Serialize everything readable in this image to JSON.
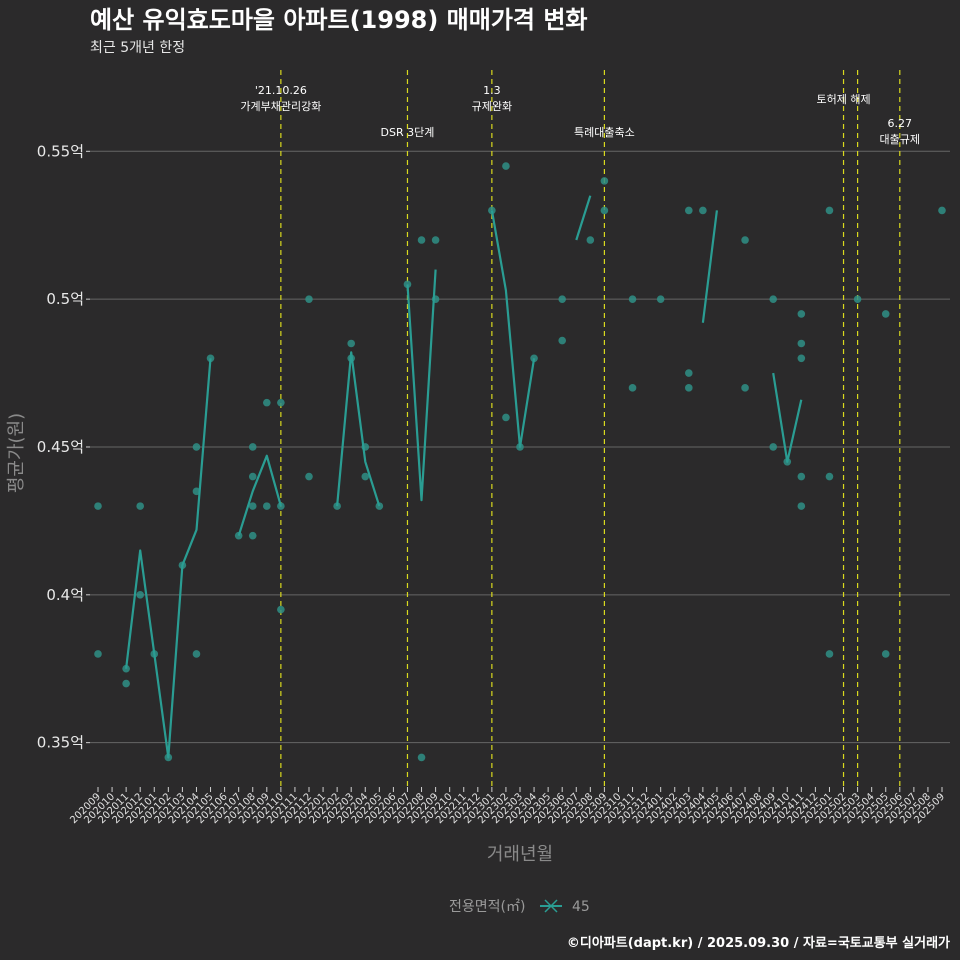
{
  "chart_data": {
    "type": "line",
    "title": "예산 유익효도마을 아파트(1998) 매매가격 변화",
    "subtitle": "최근 5개년 한정",
    "xlabel": "거래년월",
    "ylabel": "평균가(원)",
    "caption": "©디아파트(dapt.kr) / 2025.09.30 / 자료=국토교통부 실거래가",
    "legend": {
      "title": "전용면적(㎡)",
      "entries": [
        "45"
      ],
      "position": "bottom"
    },
    "ylim": [
      0.335,
      0.5775
    ],
    "ytick_values": [
      0.35,
      0.4,
      0.45,
      0.5,
      0.55
    ],
    "ytick_labels": [
      "0.35억",
      "0.4억",
      "0.45억",
      "0.5억",
      "0.55억"
    ],
    "categories": [
      "202009",
      "202010",
      "202011",
      "202012",
      "202101",
      "202102",
      "202103",
      "202104",
      "202105",
      "202106",
      "202107",
      "202108",
      "202109",
      "202110",
      "202111",
      "202112",
      "202201",
      "202202",
      "202203",
      "202204",
      "202205",
      "202206",
      "202207",
      "202208",
      "202209",
      "202210",
      "202211",
      "202212",
      "202301",
      "202302",
      "202303",
      "202304",
      "202305",
      "202306",
      "202307",
      "202308",
      "202309",
      "202310",
      "202311",
      "202312",
      "202401",
      "202402",
      "202403",
      "202404",
      "202405",
      "202406",
      "202407",
      "202408",
      "202409",
      "202410",
      "202411",
      "202412",
      "202501",
      "202502",
      "202503",
      "202504",
      "202505",
      "202506",
      "202507",
      "202508",
      "202509"
    ],
    "colors": {
      "series": "#2a9d93",
      "points": "#2f8f86",
      "vline": "#d9d91e",
      "grid": "#666666"
    },
    "series": [
      {
        "name": "45",
        "line_segments": [
          [
            [
              2,
              0.375
            ],
            [
              3,
              0.415
            ],
            [
              4,
              0.38
            ],
            [
              5,
              0.345
            ],
            [
              6,
              0.41
            ],
            [
              7,
              0.422
            ],
            [
              8,
              0.48
            ]
          ],
          [
            [
              10,
              0.42
            ],
            [
              11,
              0.435
            ],
            [
              12,
              0.447
            ],
            [
              13,
              0.43
            ]
          ],
          [
            [
              17,
              0.43
            ],
            [
              18,
              0.482
            ],
            [
              19,
              0.445
            ],
            [
              20,
              0.43
            ]
          ],
          [
            [
              22,
              0.505
            ],
            [
              23,
              0.432
            ],
            [
              24,
              0.51
            ]
          ],
          [
            [
              28,
              0.53
            ],
            [
              29,
              0.503
            ],
            [
              30,
              0.45
            ],
            [
              31,
              0.48
            ]
          ],
          [
            [
              34,
              0.52
            ],
            [
              35,
              0.535
            ]
          ],
          [
            [
              43,
              0.492
            ],
            [
              44,
              0.53
            ]
          ],
          [
            [
              48,
              0.475
            ],
            [
              49,
              0.445
            ],
            [
              50,
              0.466
            ]
          ]
        ],
        "points": [
          [
            0,
            0.43
          ],
          [
            0,
            0.38
          ],
          [
            2,
            0.375
          ],
          [
            2,
            0.37
          ],
          [
            3,
            0.43
          ],
          [
            3,
            0.4
          ],
          [
            4,
            0.38
          ],
          [
            5,
            0.345
          ],
          [
            6,
            0.41
          ],
          [
            7,
            0.45
          ],
          [
            7,
            0.435
          ],
          [
            7,
            0.38
          ],
          [
            8,
            0.48
          ],
          [
            10,
            0.42
          ],
          [
            11,
            0.45
          ],
          [
            11,
            0.44
          ],
          [
            11,
            0.43
          ],
          [
            11,
            0.42
          ],
          [
            12,
            0.465
          ],
          [
            12,
            0.43
          ],
          [
            13,
            0.465
          ],
          [
            13,
            0.43
          ],
          [
            13,
            0.395
          ],
          [
            15,
            0.5
          ],
          [
            15,
            0.44
          ],
          [
            17,
            0.43
          ],
          [
            18,
            0.485
          ],
          [
            18,
            0.48
          ],
          [
            19,
            0.45
          ],
          [
            19,
            0.44
          ],
          [
            20,
            0.43
          ],
          [
            22,
            0.505
          ],
          [
            23,
            0.52
          ],
          [
            23,
            0.345
          ],
          [
            24,
            0.52
          ],
          [
            24,
            0.5
          ],
          [
            28,
            0.53
          ],
          [
            29,
            0.545
          ],
          [
            29,
            0.46
          ],
          [
            30,
            0.45
          ],
          [
            31,
            0.48
          ],
          [
            33,
            0.5
          ],
          [
            33,
            0.486
          ],
          [
            35,
            0.52
          ],
          [
            36,
            0.54
          ],
          [
            36,
            0.53
          ],
          [
            38,
            0.5
          ],
          [
            38,
            0.47
          ],
          [
            40,
            0.5
          ],
          [
            42,
            0.53
          ],
          [
            42,
            0.475
          ],
          [
            42,
            0.47
          ],
          [
            43,
            0.53
          ],
          [
            46,
            0.52
          ],
          [
            46,
            0.47
          ],
          [
            48,
            0.5
          ],
          [
            48,
            0.45
          ],
          [
            49,
            0.445
          ],
          [
            50,
            0.495
          ],
          [
            50,
            0.485
          ],
          [
            50,
            0.48
          ],
          [
            50,
            0.44
          ],
          [
            50,
            0.43
          ],
          [
            52,
            0.53
          ],
          [
            52,
            0.44
          ],
          [
            52,
            0.38
          ],
          [
            54,
            0.5
          ],
          [
            56,
            0.495
          ],
          [
            56,
            0.38
          ],
          [
            60,
            0.53
          ]
        ]
      }
    ],
    "annotations": [
      {
        "x": 13,
        "lines": [
          "'21.10.26",
          "가계부채관리강화"
        ],
        "level": "high"
      },
      {
        "x": 22,
        "lines": [
          "DSR 3단계"
        ],
        "level": "low"
      },
      {
        "x": 28,
        "lines": [
          "1.3",
          "규제완화"
        ],
        "level": "high"
      },
      {
        "x": 36,
        "lines": [
          "특례대출축소"
        ],
        "level": "low"
      },
      {
        "x": 53,
        "lines": [
          "토허제 해제"
        ],
        "level": "mid"
      },
      {
        "x": 54,
        "lines": [],
        "level": "none"
      },
      {
        "x": 57,
        "lines": [
          "6.27",
          "대출규제"
        ],
        "level": "lowest"
      }
    ]
  }
}
